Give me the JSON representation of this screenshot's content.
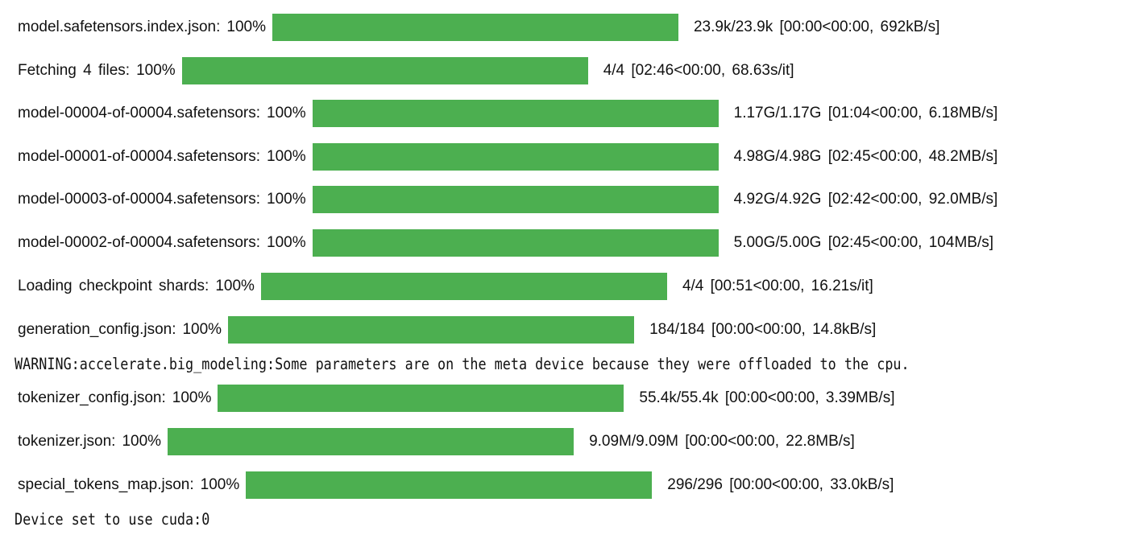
{
  "accent_color": "#4caf50",
  "progress_rows": [
    {
      "desc": "model.safetensors.index.json:",
      "pct": "100%",
      "fraction": 1.0,
      "stats": "23.9k/23.9k  [00:00<00:00,  692kB/s]"
    },
    {
      "desc": "Fetching  4  files:",
      "pct": "100%",
      "fraction": 1.0,
      "stats": "4/4  [02:46<00:00,  68.63s/it]"
    },
    {
      "desc": "model-00004-of-00004.safetensors:",
      "pct": "100%",
      "fraction": 1.0,
      "stats": "1.17G/1.17G  [01:04<00:00,  6.18MB/s]"
    },
    {
      "desc": "model-00001-of-00004.safetensors:",
      "pct": "100%",
      "fraction": 1.0,
      "stats": "4.98G/4.98G  [02:45<00:00,  48.2MB/s]"
    },
    {
      "desc": "model-00003-of-00004.safetensors:",
      "pct": "100%",
      "fraction": 1.0,
      "stats": "4.92G/4.92G  [02:42<00:00,  92.0MB/s]"
    },
    {
      "desc": "model-00002-of-00004.safetensors:",
      "pct": "100%",
      "fraction": 1.0,
      "stats": "5.00G/5.00G  [02:45<00:00,  104MB/s]"
    },
    {
      "desc": "Loading  checkpoint  shards:",
      "pct": "100%",
      "fraction": 1.0,
      "stats": "4/4  [00:51<00:00,  16.21s/it]"
    },
    {
      "desc": "generation_config.json:",
      "pct": "100%",
      "fraction": 1.0,
      "stats": "184/184  [00:00<00:00,  14.8kB/s]"
    },
    {
      "desc": "tokenizer_config.json:",
      "pct": "100%",
      "fraction": 1.0,
      "stats": "55.4k/55.4k  [00:00<00:00,  3.39MB/s]"
    },
    {
      "desc": "tokenizer.json:",
      "pct": "100%",
      "fraction": 1.0,
      "stats": "9.09M/9.09M  [00:00<00:00,  22.8MB/s]"
    },
    {
      "desc": "special_tokens_map.json:",
      "pct": "100%",
      "fraction": 1.0,
      "stats": "296/296  [00:00<00:00,  33.0kB/s]"
    }
  ],
  "log_lines": {
    "warning": "WARNING:accelerate.big_modeling:Some parameters are on the meta device because they were offloaded to the cpu.",
    "device": "Device set to use cuda:0"
  }
}
